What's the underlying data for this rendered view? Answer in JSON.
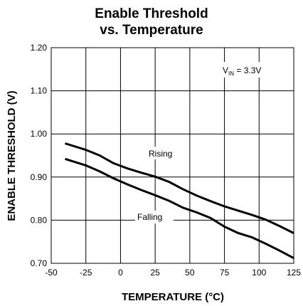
{
  "chart_data": {
    "type": "line",
    "title_line1": "Enable Threshold",
    "title_line2": "vs. Temperature",
    "xlabel": "TEMPERATURE (°C)",
    "ylabel": "ENABLE THRESHOLD (V)",
    "xlim": [
      -50,
      125
    ],
    "ylim": [
      0.7,
      1.2
    ],
    "grid": true,
    "x_ticks": [
      -50,
      -25,
      0,
      25,
      50,
      75,
      100,
      125
    ],
    "x_tick_labels": [
      "-50",
      "-25",
      "0",
      "25",
      "50",
      "75",
      "100",
      "125"
    ],
    "y_ticks": [
      0.7,
      0.8,
      0.9,
      1.0,
      1.1,
      1.2
    ],
    "y_tick_labels": [
      "0.70",
      "0.80",
      "0.90",
      "1.00",
      "1.10",
      "1.20"
    ],
    "condition": {
      "prefix": "V",
      "subscript": "IN",
      "suffix": " = 3.3V"
    },
    "series": [
      {
        "name": "Rising",
        "x": [
          -40,
          -25,
          -15,
          -5,
          5,
          15,
          25,
          35,
          45,
          55,
          65,
          75,
          85,
          95,
          105,
          115,
          125
        ],
        "y": [
          0.978,
          0.963,
          0.95,
          0.932,
          0.92,
          0.91,
          0.901,
          0.889,
          0.872,
          0.857,
          0.844,
          0.832,
          0.822,
          0.812,
          0.801,
          0.786,
          0.77
        ]
      },
      {
        "name": "Falling",
        "x": [
          -40,
          -25,
          -15,
          -5,
          5,
          15,
          25,
          35,
          45,
          55,
          65,
          75,
          85,
          95,
          105,
          115,
          125
        ],
        "y": [
          0.942,
          0.927,
          0.913,
          0.897,
          0.883,
          0.87,
          0.858,
          0.845,
          0.829,
          0.818,
          0.805,
          0.785,
          0.77,
          0.76,
          0.745,
          0.729,
          0.712
        ]
      }
    ]
  }
}
